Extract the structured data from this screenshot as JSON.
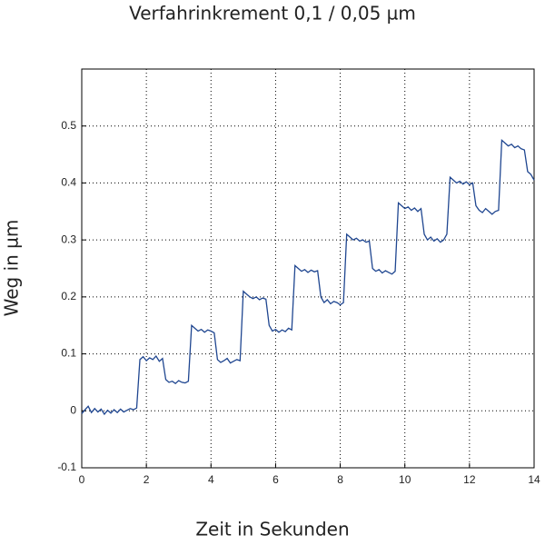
{
  "chart_data": {
    "type": "line",
    "title": "Verfahrinkrement  0,1 / 0,05 µm",
    "x_label": "Zeit in Sekunden",
    "y_label": "Weg in µm",
    "xlim": [
      0,
      14
    ],
    "xticks": [
      0,
      2,
      4,
      6,
      8,
      10,
      12,
      14
    ],
    "ylim": [
      -0.1,
      0.6
    ],
    "yticks": [
      -0.1,
      0,
      0.1,
      0.2,
      0.3,
      0.4,
      0.5
    ],
    "grid": true,
    "x": [
      0,
      0.1,
      0.2,
      0.3,
      0.4,
      0.5,
      0.6,
      0.7,
      0.8,
      0.9,
      1,
      1.1,
      1.2,
      1.3,
      1.4,
      1.5,
      1.6,
      1.7,
      1.8,
      1.9,
      2,
      2.1,
      2.2,
      2.3,
      2.4,
      2.5,
      2.6,
      2.7,
      2.8,
      2.9,
      3,
      3.1,
      3.2,
      3.3,
      3.4,
      3.5,
      3.6,
      3.7,
      3.8,
      3.9,
      4,
      4.1,
      4.2,
      4.3,
      4.4,
      4.5,
      4.6,
      4.7,
      4.8,
      4.9,
      5,
      5.1,
      5.2,
      5.3,
      5.4,
      5.5,
      5.6,
      5.7,
      5.8,
      5.9,
      6,
      6.1,
      6.2,
      6.3,
      6.4,
      6.5,
      6.6,
      6.7,
      6.8,
      6.9,
      7,
      7.1,
      7.2,
      7.3,
      7.4,
      7.5,
      7.6,
      7.7,
      7.8,
      7.9,
      8,
      8.1,
      8.2,
      8.3,
      8.4,
      8.5,
      8.6,
      8.7,
      8.8,
      8.9,
      9,
      9.1,
      9.2,
      9.3,
      9.4,
      9.5,
      9.6,
      9.7,
      9.8,
      9.9,
      10,
      10.1,
      10.2,
      10.3,
      10.4,
      10.5,
      10.6,
      10.7,
      10.8,
      10.9,
      11,
      11.1,
      11.2,
      11.3,
      11.4,
      11.5,
      11.6,
      11.7,
      11.8,
      11.9,
      12,
      12.1,
      12.2,
      12.3,
      12.4,
      12.5,
      12.6,
      12.7,
      12.8,
      12.9,
      13,
      13.1,
      13.2,
      13.3,
      13.4,
      13.5,
      13.6,
      13.7,
      13.8,
      13.9,
      14
    ],
    "series": [
      {
        "color": "#1f4690",
        "values": [
          -0.005,
          0.002,
          0.008,
          -0.003,
          0.004,
          -0.002,
          0.003,
          -0.006,
          0.001,
          -0.004,
          0.002,
          -0.003,
          0.003,
          -0.002,
          0.001,
          0.004,
          0.002,
          0.005,
          0.09,
          0.095,
          0.088,
          0.093,
          0.09,
          0.096,
          0.087,
          0.092,
          0.055,
          0.05,
          0.052,
          0.048,
          0.053,
          0.05,
          0.049,
          0.052,
          0.15,
          0.145,
          0.14,
          0.143,
          0.138,
          0.142,
          0.14,
          0.137,
          0.09,
          0.085,
          0.088,
          0.092,
          0.084,
          0.087,
          0.09,
          0.088,
          0.21,
          0.205,
          0.2,
          0.197,
          0.2,
          0.195,
          0.198,
          0.196,
          0.15,
          0.14,
          0.143,
          0.138,
          0.142,
          0.139,
          0.145,
          0.142,
          0.255,
          0.25,
          0.245,
          0.248,
          0.243,
          0.247,
          0.244,
          0.246,
          0.2,
          0.19,
          0.195,
          0.188,
          0.192,
          0.19,
          0.186,
          0.19,
          0.31,
          0.305,
          0.3,
          0.303,
          0.298,
          0.3,
          0.296,
          0.298,
          0.25,
          0.245,
          0.248,
          0.242,
          0.246,
          0.243,
          0.24,
          0.245,
          0.365,
          0.36,
          0.355,
          0.358,
          0.352,
          0.356,
          0.35,
          0.355,
          0.31,
          0.3,
          0.305,
          0.298,
          0.302,
          0.296,
          0.3,
          0.31,
          0.41,
          0.405,
          0.4,
          0.403,
          0.398,
          0.402,
          0.397,
          0.4,
          0.36,
          0.352,
          0.348,
          0.355,
          0.35,
          0.345,
          0.35,
          0.352,
          0.475,
          0.47,
          0.465,
          0.468,
          0.462,
          0.465,
          0.46,
          0.458,
          0.42,
          0.415,
          0.405
        ]
      }
    ]
  }
}
